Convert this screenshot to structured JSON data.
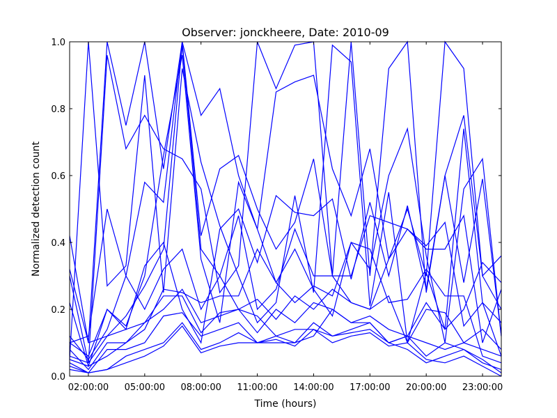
{
  "chart_data": {
    "type": "line",
    "title": "Observer: jonckheere, Date: 2010-09",
    "xlabel": "Time (hours)",
    "ylabel": "Normalized detection count",
    "xlim": [
      1.0,
      24.0
    ],
    "ylim": [
      0.0,
      1.0
    ],
    "x_ticks": [
      {
        "value": 2,
        "label": "02:00:00"
      },
      {
        "value": 5,
        "label": "05:00:00"
      },
      {
        "value": 8,
        "label": "08:00:00"
      },
      {
        "value": 11,
        "label": "11:00:00"
      },
      {
        "value": 14,
        "label": "14:00:00"
      },
      {
        "value": 17,
        "label": "17:00:00"
      },
      {
        "value": 20,
        "label": "20:00:00"
      },
      {
        "value": 23,
        "label": "23:00:00"
      }
    ],
    "y_ticks": [
      {
        "value": 0.0,
        "label": "0.0"
      },
      {
        "value": 0.2,
        "label": "0.2"
      },
      {
        "value": 0.4,
        "label": "0.4"
      },
      {
        "value": 0.6,
        "label": "0.6"
      },
      {
        "value": 0.8,
        "label": "0.8"
      },
      {
        "value": 1.0,
        "label": "1.0"
      }
    ],
    "grid": false,
    "line_color": "#0000ff",
    "x": [
      1,
      2,
      3,
      4,
      5,
      6,
      7,
      8,
      9,
      10,
      11,
      12,
      13,
      14,
      15,
      16,
      17,
      18,
      19,
      20,
      21,
      22,
      23,
      24
    ],
    "series": [
      {
        "values": [
          0.42,
          0.1,
          1.0,
          0.75,
          1.0,
          0.62,
          1.0,
          0.78,
          0.86,
          0.6,
          0.44,
          0.85,
          0.88,
          0.9,
          0.62,
          0.48,
          0.68,
          0.35,
          0.5,
          0.3,
          1.0,
          0.92,
          0.3,
          0.2
        ]
      },
      {
        "values": [
          0.1,
          0.12,
          0.5,
          0.3,
          0.58,
          0.52,
          1.0,
          0.42,
          0.62,
          0.66,
          0.5,
          0.38,
          0.46,
          0.65,
          0.3,
          1.0,
          0.3,
          0.92,
          1.0,
          0.25,
          0.6,
          0.78,
          0.3,
          0.36
        ]
      },
      {
        "values": [
          0.05,
          1.0,
          0.27,
          0.33,
          0.9,
          0.25,
          0.92,
          0.64,
          0.45,
          0.3,
          0.16,
          0.22,
          0.54,
          0.25,
          0.99,
          0.94,
          0.21,
          0.55,
          0.1,
          0.31,
          0.14,
          0.74,
          0.22,
          0.16
        ]
      },
      {
        "values": [
          0.3,
          0.04,
          0.96,
          0.68,
          0.78,
          0.68,
          0.65,
          0.56,
          0.25,
          0.33,
          1.0,
          0.86,
          0.99,
          1.0,
          0.3,
          0.22,
          0.2,
          0.35,
          0.44,
          0.39,
          0.46,
          0.15,
          0.22,
          0.06
        ]
      },
      {
        "values": [
          0.22,
          0.03,
          0.2,
          0.14,
          0.33,
          0.4,
          0.2,
          0.1,
          0.44,
          0.5,
          0.34,
          0.54,
          0.49,
          0.48,
          0.53,
          0.29,
          0.52,
          0.3,
          0.51,
          0.26,
          0.6,
          0.28,
          0.59,
          0.12
        ]
      },
      {
        "values": [
          0.12,
          0.05,
          0.14,
          0.3,
          0.2,
          0.32,
          0.38,
          0.2,
          0.3,
          0.48,
          0.2,
          0.26,
          0.44,
          0.3,
          0.3,
          0.3,
          0.48,
          0.46,
          0.44,
          0.38,
          0.38,
          0.48,
          0.1,
          0.26
        ]
      },
      {
        "values": [
          0.08,
          0.02,
          0.1,
          0.1,
          0.14,
          0.26,
          0.25,
          0.22,
          0.24,
          0.24,
          0.38,
          0.28,
          0.22,
          0.27,
          0.24,
          0.4,
          0.38,
          0.22,
          0.23,
          0.32,
          0.24,
          0.24,
          0.06,
          0.04
        ]
      },
      {
        "values": [
          0.05,
          0.03,
          0.06,
          0.1,
          0.16,
          0.2,
          0.26,
          0.16,
          0.18,
          0.2,
          0.23,
          0.17,
          0.24,
          0.2,
          0.26,
          0.22,
          0.2,
          0.24,
          0.1,
          0.2,
          0.19,
          0.1,
          0.14,
          0.08
        ]
      },
      {
        "values": [
          0.06,
          0.04,
          0.12,
          0.14,
          0.16,
          0.24,
          0.24,
          0.13,
          0.19,
          0.2,
          0.13,
          0.2,
          0.16,
          0.22,
          0.2,
          0.16,
          0.18,
          0.14,
          0.12,
          0.1,
          0.08,
          0.1,
          0.08,
          0.06
        ]
      },
      {
        "values": [
          0.04,
          0.01,
          0.08,
          0.08,
          0.1,
          0.18,
          0.19,
          0.12,
          0.14,
          0.16,
          0.1,
          0.12,
          0.14,
          0.14,
          0.12,
          0.14,
          0.16,
          0.1,
          0.12,
          0.06,
          0.1,
          0.08,
          0.04,
          0.02
        ]
      },
      {
        "values": [
          0.03,
          0.01,
          0.02,
          0.06,
          0.08,
          0.1,
          0.16,
          0.08,
          0.1,
          0.13,
          0.1,
          0.1,
          0.1,
          0.16,
          0.12,
          0.13,
          0.14,
          0.1,
          0.08,
          0.04,
          0.06,
          0.08,
          0.05,
          0.01
        ]
      },
      {
        "values": [
          0.02,
          0.01,
          0.02,
          0.04,
          0.06,
          0.09,
          0.15,
          0.07,
          0.09,
          0.1,
          0.1,
          0.11,
          0.09,
          0.14,
          0.1,
          0.12,
          0.13,
          0.09,
          0.1,
          0.05,
          0.04,
          0.06,
          0.03,
          0.0
        ]
      },
      {
        "values": [
          0.1,
          0.06,
          0.2,
          0.15,
          0.3,
          0.66,
          0.96,
          0.35,
          0.16,
          0.58,
          0.44,
          0.28,
          0.38,
          0.26,
          0.18,
          0.4,
          0.32,
          0.6,
          0.74,
          0.36,
          0.1,
          0.56,
          0.65,
          0.12
        ]
      },
      {
        "values": [
          0.32,
          0.1,
          0.12,
          0.18,
          0.27,
          0.38,
          0.99,
          0.38,
          0.3,
          0.2,
          0.18,
          0.12,
          0.1,
          0.12,
          0.2,
          0.16,
          0.16,
          0.1,
          0.12,
          0.22,
          0.14,
          0.2,
          0.34,
          0.28
        ]
      }
    ]
  }
}
